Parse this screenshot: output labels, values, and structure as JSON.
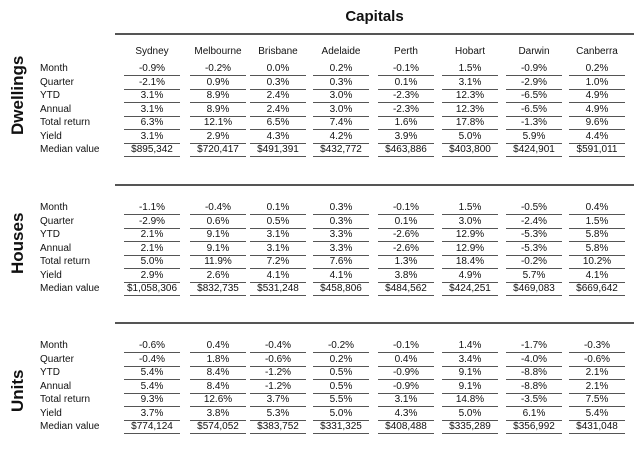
{
  "title": "Capitals",
  "columns": [
    "Sydney",
    "Melbourne",
    "Brisbane",
    "Adelaide",
    "Perth",
    "Hobart",
    "Darwin",
    "Canberra"
  ],
  "sections": [
    {
      "label": "Dwellings",
      "rows": [
        {
          "label": "Month",
          "values": [
            "-0.9%",
            "-0.2%",
            "0.0%",
            "0.2%",
            "-0.1%",
            "1.5%",
            "-0.9%",
            "0.2%"
          ]
        },
        {
          "label": "Quarter",
          "values": [
            "-2.1%",
            "0.9%",
            "0.3%",
            "0.3%",
            "0.1%",
            "3.1%",
            "-2.9%",
            "1.0%"
          ]
        },
        {
          "label": "YTD",
          "values": [
            "3.1%",
            "8.9%",
            "2.4%",
            "3.0%",
            "-2.3%",
            "12.3%",
            "-6.5%",
            "4.9%"
          ]
        },
        {
          "label": "Annual",
          "values": [
            "3.1%",
            "8.9%",
            "2.4%",
            "3.0%",
            "-2.3%",
            "12.3%",
            "-6.5%",
            "4.9%"
          ]
        },
        {
          "label": "Total return",
          "values": [
            "6.3%",
            "12.1%",
            "6.5%",
            "7.4%",
            "1.6%",
            "17.8%",
            "-1.3%",
            "9.6%"
          ]
        },
        {
          "label": "Yield",
          "values": [
            "3.1%",
            "2.9%",
            "4.3%",
            "4.2%",
            "3.9%",
            "5.0%",
            "5.9%",
            "4.4%"
          ]
        },
        {
          "label": "Median value",
          "values": [
            "$895,342",
            "$720,417",
            "$491,391",
            "$432,772",
            "$463,886",
            "$403,800",
            "$424,901",
            "$591,011"
          ]
        }
      ]
    },
    {
      "label": "Houses",
      "rows": [
        {
          "label": "Month",
          "values": [
            "-1.1%",
            "-0.4%",
            "0.1%",
            "0.3%",
            "-0.1%",
            "1.5%",
            "-0.5%",
            "0.4%"
          ]
        },
        {
          "label": "Quarter",
          "values": [
            "-2.9%",
            "0.6%",
            "0.5%",
            "0.3%",
            "0.1%",
            "3.0%",
            "-2.4%",
            "1.5%"
          ]
        },
        {
          "label": "YTD",
          "values": [
            "2.1%",
            "9.1%",
            "3.1%",
            "3.3%",
            "-2.6%",
            "12.9%",
            "-5.3%",
            "5.8%"
          ]
        },
        {
          "label": "Annual",
          "values": [
            "2.1%",
            "9.1%",
            "3.1%",
            "3.3%",
            "-2.6%",
            "12.9%",
            "-5.3%",
            "5.8%"
          ]
        },
        {
          "label": "Total return",
          "values": [
            "5.0%",
            "11.9%",
            "7.2%",
            "7.6%",
            "1.3%",
            "18.4%",
            "-0.2%",
            "10.2%"
          ]
        },
        {
          "label": "Yield",
          "values": [
            "2.9%",
            "2.6%",
            "4.1%",
            "4.1%",
            "3.8%",
            "4.9%",
            "5.7%",
            "4.1%"
          ]
        },
        {
          "label": "Median value",
          "values": [
            "$1,058,306",
            "$832,735",
            "$531,248",
            "$458,806",
            "$484,562",
            "$424,251",
            "$469,083",
            "$669,642"
          ]
        }
      ]
    },
    {
      "label": "Units",
      "rows": [
        {
          "label": "Month",
          "values": [
            "-0.6%",
            "0.4%",
            "-0.4%",
            "-0.2%",
            "-0.1%",
            "1.4%",
            "-1.7%",
            "-0.3%"
          ]
        },
        {
          "label": "Quarter",
          "values": [
            "-0.4%",
            "1.8%",
            "-0.6%",
            "0.2%",
            "0.4%",
            "3.4%",
            "-4.0%",
            "-0.6%"
          ]
        },
        {
          "label": "YTD",
          "values": [
            "5.4%",
            "8.4%",
            "-1.2%",
            "0.5%",
            "-0.9%",
            "9.1%",
            "-8.8%",
            "2.1%"
          ]
        },
        {
          "label": "Annual",
          "values": [
            "5.4%",
            "8.4%",
            "-1.2%",
            "0.5%",
            "-0.9%",
            "9.1%",
            "-8.8%",
            "2.1%"
          ]
        },
        {
          "label": "Total return",
          "values": [
            "9.3%",
            "12.6%",
            "3.7%",
            "5.5%",
            "3.1%",
            "14.8%",
            "-3.5%",
            "7.5%"
          ]
        },
        {
          "label": "Yield",
          "values": [
            "3.7%",
            "3.8%",
            "5.3%",
            "5.0%",
            "4.3%",
            "5.0%",
            "6.1%",
            "5.4%"
          ]
        },
        {
          "label": "Median value",
          "values": [
            "$774,124",
            "$574,052",
            "$383,752",
            "$331,325",
            "$408,488",
            "$335,289",
            "$356,992",
            "$431,048"
          ]
        }
      ]
    }
  ]
}
